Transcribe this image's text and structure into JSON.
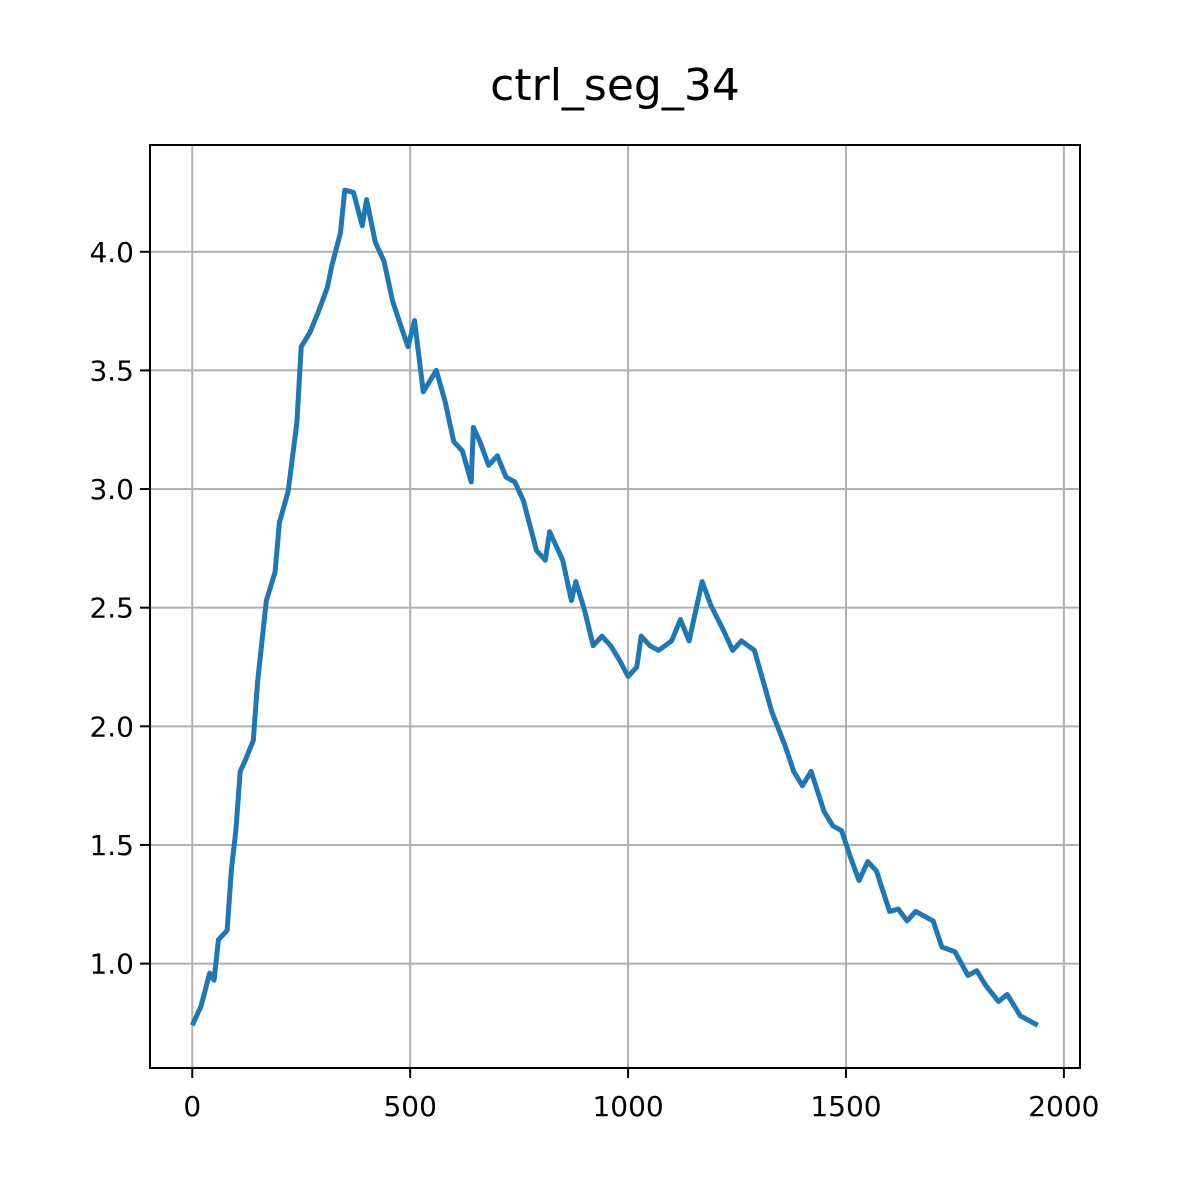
{
  "chart_data": {
    "type": "line",
    "title": "ctrl_seg_34",
    "x": [
      0,
      20,
      40,
      50,
      60,
      80,
      90,
      100,
      110,
      120,
      140,
      150,
      160,
      170,
      190,
      200,
      220,
      240,
      250,
      270,
      290,
      310,
      320,
      340,
      350,
      370,
      390,
      400,
      420,
      440,
      460,
      480,
      495,
      510,
      530,
      560,
      580,
      600,
      620,
      640,
      645,
      660,
      680,
      700,
      720,
      740,
      760,
      790,
      810,
      820,
      850,
      870,
      880,
      900,
      920,
      940,
      960,
      980,
      1000,
      1020,
      1030,
      1050,
      1070,
      1100,
      1120,
      1140,
      1170,
      1190,
      1220,
      1240,
      1260,
      1290,
      1310,
      1330,
      1360,
      1380,
      1400,
      1420,
      1450,
      1470,
      1490,
      1510,
      1530,
      1550,
      1570,
      1600,
      1620,
      1640,
      1660,
      1700,
      1720,
      1750,
      1780,
      1800,
      1820,
      1850,
      1870,
      1900,
      1920,
      1940
    ],
    "series": [
      {
        "name": "ctrl_seg_34",
        "color": "#1f77b4",
        "values": [
          0.74,
          0.82,
          0.96,
          0.93,
          1.1,
          1.14,
          1.4,
          1.56,
          1.81,
          1.85,
          1.94,
          2.19,
          2.36,
          2.53,
          2.65,
          2.86,
          2.99,
          3.28,
          3.6,
          3.66,
          3.75,
          3.85,
          3.94,
          4.08,
          4.26,
          4.25,
          4.11,
          4.22,
          4.04,
          3.96,
          3.79,
          3.68,
          3.6,
          3.71,
          3.41,
          3.5,
          3.37,
          3.2,
          3.16,
          3.03,
          3.26,
          3.2,
          3.1,
          3.14,
          3.05,
          3.03,
          2.95,
          2.74,
          2.7,
          2.82,
          2.7,
          2.53,
          2.61,
          2.49,
          2.34,
          2.38,
          2.34,
          2.28,
          2.21,
          2.25,
          2.38,
          2.34,
          2.32,
          2.36,
          2.45,
          2.36,
          2.61,
          2.51,
          2.4,
          2.32,
          2.36,
          2.32,
          2.19,
          2.06,
          1.92,
          1.81,
          1.75,
          1.81,
          1.64,
          1.58,
          1.56,
          1.45,
          1.35,
          1.43,
          1.39,
          1.22,
          1.23,
          1.18,
          1.22,
          1.18,
          1.07,
          1.05,
          0.95,
          0.97,
          0.91,
          0.84,
          0.87,
          0.78,
          0.76,
          0.74
        ]
      }
    ],
    "xlim": [
      -97,
      2037
    ],
    "ylim": [
      0.56,
      4.45
    ],
    "xticks": [
      0,
      500,
      1000,
      1500,
      2000
    ],
    "yticks": [
      {
        "value": 1,
        "label": "1.0"
      },
      1.5,
      {
        "value": 2,
        "label": "2.0"
      },
      2.5,
      {
        "value": 3,
        "label": "3.0"
      },
      3.5,
      {
        "value": 4,
        "label": "4.0"
      }
    ],
    "grid": true
  }
}
